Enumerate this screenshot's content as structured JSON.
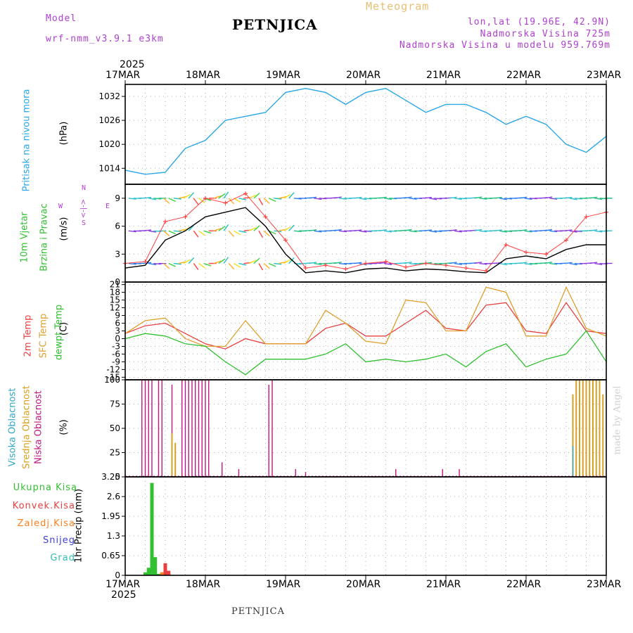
{
  "header": {
    "model_label": "Model",
    "model_name": "wrf-nmm_v3.9.1 e3km",
    "station": "PETNJICA",
    "meteogram": "Meteogram",
    "lonlat": "lon,lat (19.96E, 42.9N)",
    "elevation": "Nadmorska Visina 725m",
    "model_elevation": "Nadmorska Visina u modelu 959.769m"
  },
  "footer": {
    "station": "PETNJICA",
    "credit": "made by Angel"
  },
  "time_axis": {
    "year_top": "2025",
    "year_bottom": "2025",
    "days": [
      "17MAR",
      "18MAR",
      "19MAR",
      "20MAR",
      "21MAR",
      "22MAR",
      "23MAR"
    ]
  },
  "colors": {
    "pressure": "#2aa6e8",
    "wind_speed": "#000000",
    "gust": "#ff4040",
    "temp2m": "#e84040",
    "sfc_temp": "#e0a030",
    "dewpt": "#30c030",
    "high_cloud": "#30a8c8",
    "mid_cloud": "#d8a020",
    "low_cloud": "#c01880",
    "precip_total": "#30c030",
    "precip_conv": "#e84040",
    "freezing": "#ff8020",
    "snow": "#4040e0",
    "hail": "#30c0b0"
  },
  "labels": {
    "pressure": [
      "Pritisak na nivou mora",
      "(hPa)"
    ],
    "wind": [
      "10m Vjetar",
      "Brzina i Pravac",
      "(m/s)"
    ],
    "compass": [
      "W",
      "<-|->",
      "E",
      "S",
      "N"
    ],
    "temp": [
      "2m Temp",
      "SFC Temp",
      "dewpt Temp",
      "(C)"
    ],
    "cloud": [
      "Visoka Oblacnost",
      "Srednja Oblacnost",
      "Niska Oblacnost",
      "(%)"
    ],
    "precip_legend": [
      "Ukupna Kisa",
      "Konvek.Kisa",
      "Zaledj.Kisa",
      "Snijeg",
      "Grad"
    ],
    "precip_axis": "1hr Precip (mm)"
  },
  "chart_data": [
    {
      "type": "line",
      "name": "pressure",
      "ylabel": "(hPa)",
      "yticks": [
        "1014",
        "1020",
        "1026",
        "1032"
      ],
      "ylim": [
        1010,
        1035
      ],
      "x": [
        0,
        6,
        12,
        18,
        24,
        30,
        36,
        42,
        48,
        54,
        60,
        66,
        72,
        78,
        84,
        90,
        96,
        102,
        108,
        114,
        120,
        126,
        132,
        138,
        144
      ],
      "values": [
        1013.5,
        1012.5,
        1013,
        1019,
        1021,
        1026,
        1027,
        1028,
        1033,
        1034,
        1033,
        1030,
        1033,
        1034,
        1031,
        1028,
        1030,
        1030,
        1028,
        1025,
        1027,
        1025,
        1020,
        1018,
        1022
      ]
    },
    {
      "type": "line",
      "name": "wind",
      "ylabel": "(m/s)",
      "yticks": [
        "0",
        "3",
        "6",
        "9"
      ],
      "ylim": [
        0,
        10.5
      ],
      "x": [
        0,
        6,
        12,
        18,
        24,
        30,
        36,
        42,
        48,
        54,
        60,
        66,
        72,
        78,
        84,
        90,
        96,
        102,
        108,
        114,
        120,
        126,
        132,
        138,
        144
      ],
      "series": [
        {
          "name": "wind_speed",
          "values": [
            1.5,
            1.8,
            4.5,
            5.5,
            7,
            7.5,
            8,
            6,
            3,
            1,
            1.2,
            1,
            1.4,
            1.5,
            1.2,
            1.4,
            1.3,
            1.1,
            1,
            2.5,
            2.8,
            2.5,
            3.5,
            4,
            4
          ]
        },
        {
          "name": "gust",
          "values": [
            2,
            2.2,
            6.5,
            7,
            9,
            8.5,
            9.5,
            7,
            4.5,
            1.5,
            1.8,
            1.4,
            2,
            2.2,
            1.6,
            2,
            1.8,
            1.5,
            1.2,
            4,
            3.2,
            3,
            4.5,
            7,
            7.5
          ]
        }
      ]
    },
    {
      "type": "line",
      "name": "temperature",
      "ylabel": "(C)",
      "yticks": [
        "-15",
        "-12",
        "-9",
        "-6",
        "-3",
        "0",
        "3",
        "6",
        "9",
        "12",
        "15",
        "18",
        "21"
      ],
      "ylim": [
        -16,
        22
      ],
      "x": [
        0,
        6,
        12,
        18,
        24,
        30,
        36,
        42,
        48,
        54,
        60,
        66,
        72,
        78,
        84,
        90,
        96,
        102,
        108,
        114,
        120,
        126,
        132,
        138,
        144
      ],
      "series": [
        {
          "name": "temp2m",
          "values": [
            2,
            5,
            6,
            2,
            -2,
            -4,
            0,
            -2,
            -2,
            -2,
            4,
            6,
            1,
            1,
            6,
            11,
            4,
            3,
            13,
            14,
            3,
            2,
            14,
            3,
            2
          ]
        },
        {
          "name": "sfc_temp",
          "values": [
            2,
            7,
            8,
            0,
            -3,
            -3,
            7,
            -2,
            -2,
            -2,
            11,
            6,
            -1,
            -2,
            15,
            14,
            3,
            3,
            20,
            18,
            1,
            1,
            20,
            4,
            1
          ]
        },
        {
          "name": "dewpt",
          "values": [
            0,
            2,
            1,
            -2,
            -3,
            -9,
            -14,
            -8,
            -8,
            -8,
            -6,
            -2,
            -9,
            -8,
            -9,
            -8,
            -6,
            -11,
            -5,
            -2,
            -11,
            -8,
            -6,
            3,
            -9
          ]
        }
      ]
    },
    {
      "type": "bar",
      "name": "cloud_cover",
      "ylabel": "(%)",
      "yticks": [
        "0",
        "25",
        "50",
        "75",
        "100"
      ],
      "ylim": [
        0,
        100
      ],
      "series": [
        {
          "name": "low_cloud",
          "x": [
            5,
            6,
            7,
            8,
            10,
            11,
            14,
            17,
            18,
            19,
            20,
            21,
            22,
            23,
            24,
            25,
            29,
            34,
            43,
            44,
            51,
            54,
            81,
            95,
            100
          ],
          "values": [
            100,
            100,
            100,
            100,
            100,
            100,
            95,
            100,
            100,
            100,
            100,
            100,
            100,
            100,
            100,
            100,
            15,
            8,
            95,
            100,
            8,
            5,
            8,
            8,
            8
          ]
        },
        {
          "name": "mid_cloud",
          "x": [
            14,
            15,
            134,
            135,
            136,
            137,
            138,
            139,
            140,
            141,
            142,
            143
          ],
          "values": [
            45,
            35,
            85,
            100,
            100,
            100,
            100,
            100,
            100,
            100,
            100,
            85
          ]
        },
        {
          "name": "high_cloud",
          "x": [
            134
          ],
          "values": [
            32
          ]
        }
      ]
    },
    {
      "type": "bar",
      "name": "precip",
      "ylabel": "1hr Precip (mm)",
      "yticks": [
        "0",
        "0.65",
        "1.3",
        "1.95",
        "2.6",
        "3.25"
      ],
      "ylim": [
        0,
        3.25
      ],
      "series": [
        {
          "name": "precip_total",
          "x": [
            6,
            7,
            8,
            9,
            10,
            12,
            13
          ],
          "values": [
            0.1,
            0.25,
            3.05,
            0.6,
            0.05,
            0.2,
            0.1
          ]
        },
        {
          "name": "precip_conv",
          "x": [
            12,
            13
          ],
          "values": [
            0.4,
            0.15
          ]
        },
        {
          "name": "freezing",
          "x": [
            11
          ],
          "values": [
            0.1
          ]
        }
      ]
    }
  ]
}
